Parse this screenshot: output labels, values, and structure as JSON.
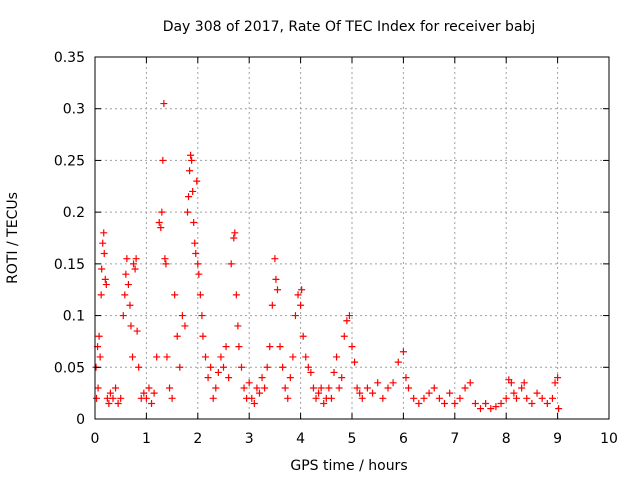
{
  "chart_data": {
    "type": "scatter",
    "title": "Day 308 of 2017, Rate Of TEC Index for receiver babj",
    "xlabel": "GPS time / hours",
    "ylabel": "ROTI / TECUs",
    "xlim": [
      0,
      10
    ],
    "ylim": [
      0,
      0.35
    ],
    "x_ticks": [
      "0",
      "1",
      "2",
      "3",
      "4",
      "5",
      "6",
      "7",
      "8",
      "9",
      "10"
    ],
    "y_ticks": [
      "0",
      "0.05",
      "0.1",
      "0.15",
      "0.2",
      "0.25",
      "0.3",
      "0.35"
    ],
    "grid": true,
    "marker": "+",
    "colors": {
      "series": "#ff0000",
      "axis": "#000000",
      "grid": "#a0a0a0"
    },
    "series": [
      {
        "name": "ROTI babj",
        "points": [
          [
            0.02,
            0.05
          ],
          [
            0.03,
            0.02
          ],
          [
            0.05,
            0.07
          ],
          [
            0.06,
            0.03
          ],
          [
            0.08,
            0.08
          ],
          [
            0.1,
            0.06
          ],
          [
            0.12,
            0.12
          ],
          [
            0.13,
            0.145
          ],
          [
            0.15,
            0.17
          ],
          [
            0.17,
            0.18
          ],
          [
            0.18,
            0.16
          ],
          [
            0.2,
            0.135
          ],
          [
            0.22,
            0.13
          ],
          [
            0.24,
            0.02
          ],
          [
            0.27,
            0.015
          ],
          [
            0.3,
            0.025
          ],
          [
            0.35,
            0.02
          ],
          [
            0.4,
            0.03
          ],
          [
            0.45,
            0.015
          ],
          [
            0.5,
            0.02
          ],
          [
            0.55,
            0.1
          ],
          [
            0.58,
            0.12
          ],
          [
            0.6,
            0.14
          ],
          [
            0.62,
            0.155
          ],
          [
            0.65,
            0.13
          ],
          [
            0.68,
            0.11
          ],
          [
            0.7,
            0.09
          ],
          [
            0.73,
            0.06
          ],
          [
            0.75,
            0.15
          ],
          [
            0.78,
            0.145
          ],
          [
            0.8,
            0.155
          ],
          [
            0.82,
            0.085
          ],
          [
            0.85,
            0.05
          ],
          [
            0.9,
            0.02
          ],
          [
            0.95,
            0.025
          ],
          [
            1.0,
            0.02
          ],
          [
            1.05,
            0.03
          ],
          [
            1.1,
            0.015
          ],
          [
            1.15,
            0.025
          ],
          [
            1.2,
            0.06
          ],
          [
            1.25,
            0.19
          ],
          [
            1.28,
            0.185
          ],
          [
            1.3,
            0.2
          ],
          [
            1.32,
            0.25
          ],
          [
            1.34,
            0.305
          ],
          [
            1.36,
            0.155
          ],
          [
            1.38,
            0.15
          ],
          [
            1.4,
            0.06
          ],
          [
            1.45,
            0.03
          ],
          [
            1.5,
            0.02
          ],
          [
            1.55,
            0.12
          ],
          [
            1.6,
            0.08
          ],
          [
            1.65,
            0.05
          ],
          [
            1.7,
            0.1
          ],
          [
            1.75,
            0.09
          ],
          [
            1.8,
            0.2
          ],
          [
            1.82,
            0.215
          ],
          [
            1.84,
            0.24
          ],
          [
            1.86,
            0.255
          ],
          [
            1.88,
            0.25
          ],
          [
            1.9,
            0.22
          ],
          [
            1.92,
            0.19
          ],
          [
            1.94,
            0.17
          ],
          [
            1.96,
            0.16
          ],
          [
            1.98,
            0.23
          ],
          [
            2.0,
            0.15
          ],
          [
            2.02,
            0.14
          ],
          [
            2.05,
            0.12
          ],
          [
            2.08,
            0.1
          ],
          [
            2.1,
            0.08
          ],
          [
            2.15,
            0.06
          ],
          [
            2.2,
            0.04
          ],
          [
            2.25,
            0.05
          ],
          [
            2.3,
            0.02
          ],
          [
            2.35,
            0.03
          ],
          [
            2.4,
            0.045
          ],
          [
            2.45,
            0.06
          ],
          [
            2.5,
            0.05
          ],
          [
            2.55,
            0.07
          ],
          [
            2.6,
            0.04
          ],
          [
            2.65,
            0.15
          ],
          [
            2.7,
            0.175
          ],
          [
            2.72,
            0.18
          ],
          [
            2.75,
            0.12
          ],
          [
            2.78,
            0.09
          ],
          [
            2.8,
            0.07
          ],
          [
            2.85,
            0.05
          ],
          [
            2.9,
            0.03
          ],
          [
            2.95,
            0.02
          ],
          [
            3.0,
            0.035
          ],
          [
            3.05,
            0.02
          ],
          [
            3.1,
            0.015
          ],
          [
            3.15,
            0.03
          ],
          [
            3.2,
            0.025
          ],
          [
            3.25,
            0.04
          ],
          [
            3.3,
            0.03
          ],
          [
            3.35,
            0.05
          ],
          [
            3.4,
            0.07
          ],
          [
            3.45,
            0.11
          ],
          [
            3.5,
            0.155
          ],
          [
            3.52,
            0.135
          ],
          [
            3.55,
            0.125
          ],
          [
            3.6,
            0.07
          ],
          [
            3.65,
            0.05
          ],
          [
            3.7,
            0.03
          ],
          [
            3.75,
            0.02
          ],
          [
            3.8,
            0.04
          ],
          [
            3.85,
            0.06
          ],
          [
            3.9,
            0.1
          ],
          [
            3.95,
            0.12
          ],
          [
            4.0,
            0.11
          ],
          [
            4.02,
            0.125
          ],
          [
            4.05,
            0.08
          ],
          [
            4.1,
            0.06
          ],
          [
            4.15,
            0.05
          ],
          [
            4.2,
            0.045
          ],
          [
            4.25,
            0.03
          ],
          [
            4.3,
            0.02
          ],
          [
            4.35,
            0.025
          ],
          [
            4.4,
            0.03
          ],
          [
            4.45,
            0.015
          ],
          [
            4.5,
            0.02
          ],
          [
            4.55,
            0.03
          ],
          [
            4.6,
            0.02
          ],
          [
            4.65,
            0.045
          ],
          [
            4.7,
            0.06
          ],
          [
            4.75,
            0.03
          ],
          [
            4.8,
            0.04
          ],
          [
            4.85,
            0.08
          ],
          [
            4.9,
            0.095
          ],
          [
            4.95,
            0.1
          ],
          [
            5.0,
            0.07
          ],
          [
            5.05,
            0.055
          ],
          [
            5.1,
            0.03
          ],
          [
            5.15,
            0.025
          ],
          [
            5.2,
            0.02
          ],
          [
            5.3,
            0.03
          ],
          [
            5.4,
            0.025
          ],
          [
            5.5,
            0.035
          ],
          [
            5.6,
            0.02
          ],
          [
            5.7,
            0.03
          ],
          [
            5.8,
            0.035
          ],
          [
            5.9,
            0.055
          ],
          [
            6.0,
            0.065
          ],
          [
            6.05,
            0.04
          ],
          [
            6.1,
            0.03
          ],
          [
            6.2,
            0.02
          ],
          [
            6.3,
            0.015
          ],
          [
            6.4,
            0.02
          ],
          [
            6.5,
            0.025
          ],
          [
            6.6,
            0.03
          ],
          [
            6.7,
            0.02
          ],
          [
            6.8,
            0.015
          ],
          [
            6.9,
            0.025
          ],
          [
            7.0,
            0.015
          ],
          [
            7.1,
            0.02
          ],
          [
            7.2,
            0.03
          ],
          [
            7.3,
            0.035
          ],
          [
            7.4,
            0.015
          ],
          [
            7.5,
            0.01
          ],
          [
            7.6,
            0.015
          ],
          [
            7.7,
            0.01
          ],
          [
            7.8,
            0.012
          ],
          [
            7.9,
            0.015
          ],
          [
            8.0,
            0.02
          ],
          [
            8.05,
            0.038
          ],
          [
            8.1,
            0.035
          ],
          [
            8.15,
            0.025
          ],
          [
            8.2,
            0.02
          ],
          [
            8.3,
            0.03
          ],
          [
            8.35,
            0.035
          ],
          [
            8.4,
            0.02
          ],
          [
            8.5,
            0.015
          ],
          [
            8.6,
            0.025
          ],
          [
            8.7,
            0.02
          ],
          [
            8.8,
            0.015
          ],
          [
            8.9,
            0.02
          ],
          [
            8.95,
            0.035
          ],
          [
            9.0,
            0.04
          ],
          [
            9.02,
            0.01
          ]
        ]
      }
    ]
  }
}
